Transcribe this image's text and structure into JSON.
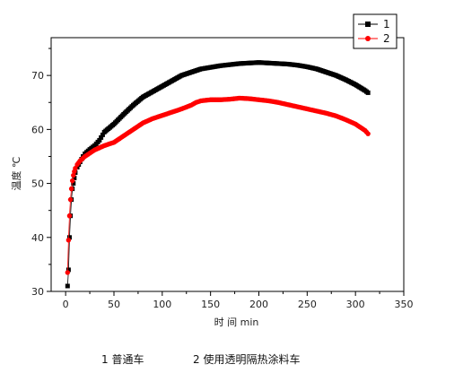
{
  "chart_data": {
    "type": "scatter",
    "xlabel": "时 间  min",
    "ylabel": "温度  ℃",
    "xlim": [
      -15,
      350
    ],
    "ylim": [
      30,
      77
    ],
    "xticks": [
      0,
      50,
      100,
      150,
      200,
      250,
      300,
      350
    ],
    "yticks": [
      30,
      40,
      50,
      60,
      70
    ],
    "grid": false,
    "legend_position": "top-right",
    "series": [
      {
        "name": "1",
        "color": "#000000",
        "marker": "square",
        "points": [
          [
            2,
            31
          ],
          [
            3,
            34
          ],
          [
            4,
            40
          ],
          [
            5,
            44
          ],
          [
            6,
            47
          ],
          [
            7,
            49
          ],
          [
            8,
            50
          ],
          [
            9,
            51
          ],
          [
            10,
            52
          ],
          [
            12,
            53
          ],
          [
            15,
            54
          ],
          [
            18,
            55
          ],
          [
            20,
            55.5
          ],
          [
            25,
            56.3
          ],
          [
            30,
            57
          ],
          [
            35,
            58
          ],
          [
            40,
            59.5
          ],
          [
            50,
            61
          ],
          [
            60,
            62.8
          ],
          [
            70,
            64.5
          ],
          [
            80,
            66
          ],
          [
            90,
            67
          ],
          [
            100,
            68
          ],
          [
            110,
            69
          ],
          [
            120,
            70
          ],
          [
            130,
            70.6
          ],
          [
            140,
            71.2
          ],
          [
            150,
            71.5
          ],
          [
            160,
            71.8
          ],
          [
            170,
            72
          ],
          [
            180,
            72.2
          ],
          [
            190,
            72.3
          ],
          [
            200,
            72.4
          ],
          [
            210,
            72.3
          ],
          [
            220,
            72.2
          ],
          [
            230,
            72.1
          ],
          [
            240,
            71.9
          ],
          [
            250,
            71.6
          ],
          [
            260,
            71.2
          ],
          [
            270,
            70.6
          ],
          [
            280,
            70
          ],
          [
            290,
            69.2
          ],
          [
            300,
            68.3
          ],
          [
            310,
            67.2
          ],
          [
            313,
            66.8
          ]
        ]
      },
      {
        "name": "2",
        "color": "#ff0000",
        "marker": "circle",
        "points": [
          [
            2,
            33.5
          ],
          [
            3,
            39.5
          ],
          [
            4,
            44
          ],
          [
            5,
            47
          ],
          [
            6,
            49
          ],
          [
            7,
            50.5
          ],
          [
            8,
            51.5
          ],
          [
            9,
            52.2
          ],
          [
            10,
            52.8
          ],
          [
            12,
            53.5
          ],
          [
            15,
            54.2
          ],
          [
            20,
            55
          ],
          [
            25,
            55.6
          ],
          [
            30,
            56.2
          ],
          [
            40,
            57
          ],
          [
            50,
            57.6
          ],
          [
            60,
            58.8
          ],
          [
            70,
            60
          ],
          [
            80,
            61.2
          ],
          [
            90,
            62
          ],
          [
            100,
            62.6
          ],
          [
            110,
            63.2
          ],
          [
            120,
            63.8
          ],
          [
            130,
            64.5
          ],
          [
            135,
            65
          ],
          [
            140,
            65.3
          ],
          [
            150,
            65.5
          ],
          [
            160,
            65.5
          ],
          [
            170,
            65.6
          ],
          [
            180,
            65.8
          ],
          [
            190,
            65.7
          ],
          [
            200,
            65.5
          ],
          [
            210,
            65.3
          ],
          [
            220,
            65
          ],
          [
            230,
            64.6
          ],
          [
            240,
            64.2
          ],
          [
            250,
            63.8
          ],
          [
            260,
            63.4
          ],
          [
            270,
            63
          ],
          [
            280,
            62.5
          ],
          [
            290,
            61.8
          ],
          [
            300,
            61
          ],
          [
            310,
            59.8
          ],
          [
            313,
            59.2
          ]
        ]
      }
    ]
  },
  "captions": {
    "left": "1 普通车",
    "right": "2 使用透明隔热涂料车"
  }
}
